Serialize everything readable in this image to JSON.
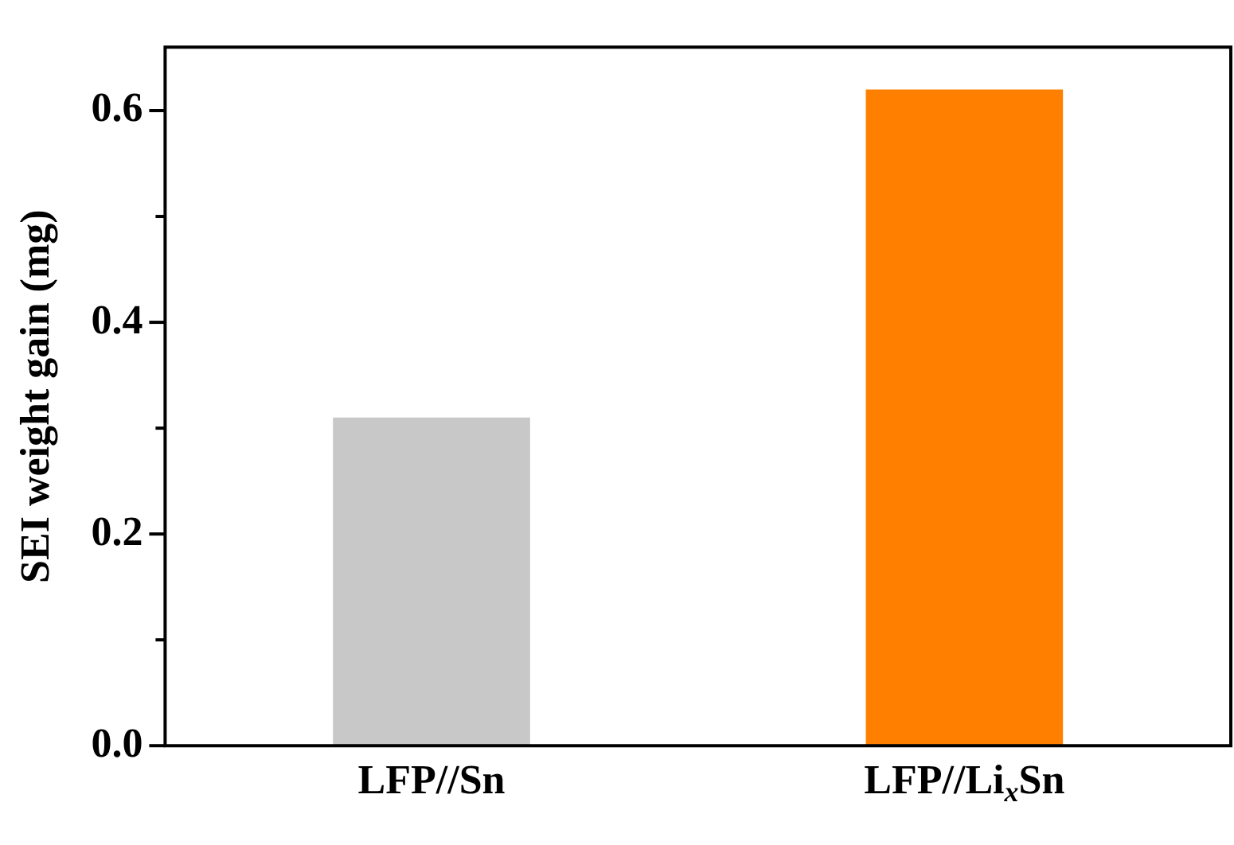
{
  "chart_data": {
    "type": "bar",
    "ylabel": "SEI weight gain (mg)",
    "categories": [
      "LFP//Sn",
      "LFP//Li$_{x}$Sn"
    ],
    "values": [
      0.31,
      0.62
    ],
    "colors": [
      "#c8c8c8",
      "#ff8000"
    ],
    "ylim": [
      0,
      0.66
    ],
    "yticks": [
      {
        "value": 0,
        "label": "0.0"
      },
      {
        "value": 0.1,
        "label": null
      },
      {
        "value": 0.2,
        "label": "0.2"
      },
      {
        "value": 0.3,
        "label": null
      },
      {
        "value": 0.4,
        "label": "0.4"
      },
      {
        "value": 0.5,
        "label": null
      },
      {
        "value": 0.6,
        "label": "0.6"
      }
    ],
    "grid": false,
    "legend": false
  }
}
